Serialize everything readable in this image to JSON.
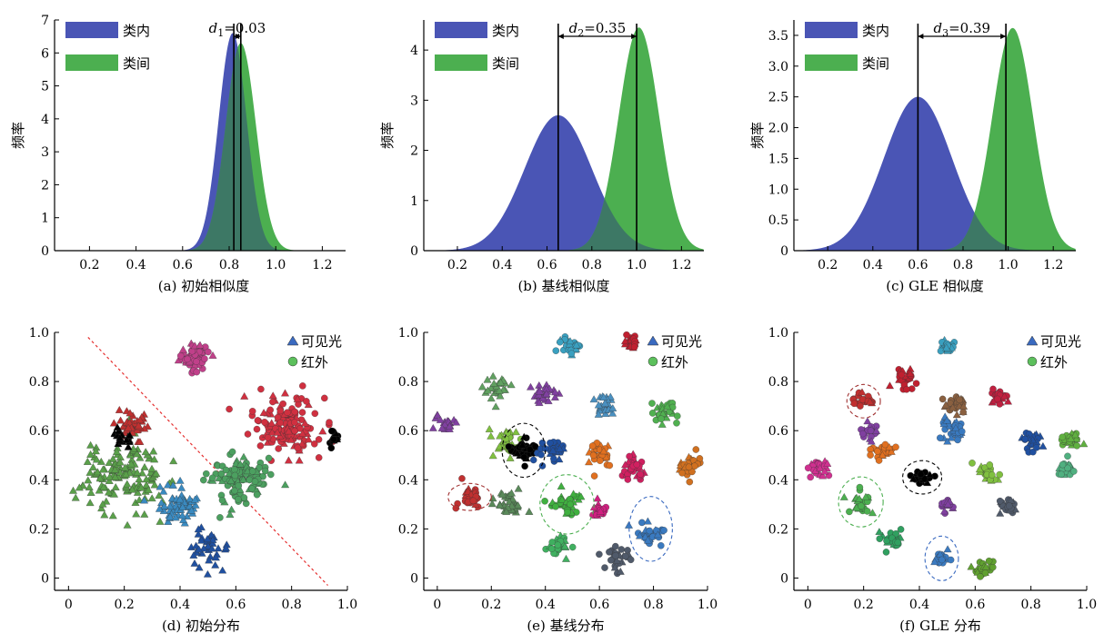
{
  "colors": {
    "intra": "#4a55b5",
    "inter": "#4caf50",
    "overlap": "#3a6a6a",
    "boundary": "#e53030"
  },
  "chart_data": [
    {
      "type": "area",
      "caption": "(a) 初始相似度",
      "ylabel": "频率",
      "legend": [
        "类内",
        "类间"
      ],
      "legend_position": "top-left",
      "xlim": [
        0.05,
        1.3
      ],
      "ylim": [
        0,
        7
      ],
      "xticks": [
        0.2,
        0.4,
        0.6,
        0.8,
        1.0,
        1.2
      ],
      "yticks": [
        0,
        1,
        2,
        3,
        4,
        5,
        6,
        7
      ],
      "series": [
        {
          "name": "类内",
          "mean": 0.815,
          "sd": 0.06,
          "peak": 6.6
        },
        {
          "name": "类间",
          "mean": 0.85,
          "sd": 0.065,
          "peak": 6.3
        }
      ],
      "vlines": [
        0.82,
        0.85
      ],
      "annotation": {
        "sym": "d",
        "sub": "1",
        "val": "=0.03"
      }
    },
    {
      "type": "area",
      "caption": "(b) 基线相似度",
      "ylabel": "频率",
      "legend": [
        "类内",
        "类间"
      ],
      "legend_position": "top-left",
      "xlim": [
        0.05,
        1.3
      ],
      "ylim": [
        0,
        4.6
      ],
      "xticks": [
        0.2,
        0.4,
        0.6,
        0.8,
        1.0,
        1.2
      ],
      "yticks": [
        0,
        1,
        2,
        3,
        4
      ],
      "series": [
        {
          "name": "类内",
          "mean": 0.65,
          "sd": 0.15,
          "peak": 2.7
        },
        {
          "name": "类间",
          "mean": 1.01,
          "sd": 0.09,
          "peak": 4.45
        }
      ],
      "vlines": [
        0.65,
        1.0
      ],
      "annotation": {
        "sym": "d",
        "sub": "2",
        "val": "=0.35"
      }
    },
    {
      "type": "area",
      "caption": "(c) GLE 相似度",
      "ylabel": "频率",
      "legend": [
        "类内",
        "类间"
      ],
      "legend_position": "top-left",
      "xlim": [
        0.05,
        1.3
      ],
      "ylim": [
        0,
        3.75
      ],
      "xticks": [
        0.2,
        0.4,
        0.6,
        0.8,
        1.0,
        1.2
      ],
      "yticks": [
        0,
        0.5,
        1.0,
        1.5,
        2.0,
        2.5,
        3.0,
        3.5
      ],
      "ytick_labels": [
        "0",
        "0.5",
        "1.0",
        "1.5",
        "2.0",
        "2.5",
        "3.0",
        "3.5"
      ],
      "series": [
        {
          "name": "类内",
          "mean": 0.6,
          "sd": 0.15,
          "peak": 2.5
        },
        {
          "name": "类间",
          "mean": 1.02,
          "sd": 0.09,
          "peak": 3.62
        }
      ],
      "vlines": [
        0.6,
        0.99
      ],
      "annotation": {
        "sym": "d",
        "sub": "3",
        "val": "=0.39"
      }
    },
    {
      "type": "scatter",
      "caption": "(d) 初始分布",
      "legend": [
        "可见光",
        "红外"
      ],
      "legend_position": "top-right",
      "xlim": [
        -0.05,
        1.0
      ],
      "ylim": [
        -0.05,
        1.0
      ],
      "ticks": [
        0,
        0.2,
        0.4,
        0.6,
        0.8,
        1.0
      ],
      "tick_labels": [
        "0",
        "0.2",
        "0.4",
        "0.6",
        "0.8",
        "1.0"
      ],
      "boundary_line": [
        [
          0.07,
          0.98
        ],
        [
          0.93,
          -0.03
        ]
      ],
      "clusters": [
        {
          "x": 0.45,
          "y": 0.9,
          "r": 0.06,
          "shape": "circle",
          "color": "#c0408a",
          "n": 60
        },
        {
          "x": 0.78,
          "y": 0.62,
          "r": 0.13,
          "shape": "circle",
          "color": "#d03040",
          "n": 150
        },
        {
          "x": 0.6,
          "y": 0.4,
          "r": 0.12,
          "shape": "circle",
          "color": "#4ca060",
          "n": 110
        },
        {
          "x": 0.95,
          "y": 0.57,
          "r": 0.03,
          "shape": "circle",
          "color": "#000000",
          "n": 14
        },
        {
          "x": 0.2,
          "y": 0.42,
          "r": 0.16,
          "shape": "triangle",
          "color": "#5aa04a",
          "n": 150
        },
        {
          "x": 0.22,
          "y": 0.62,
          "r": 0.07,
          "shape": "triangle",
          "color": "#c03030",
          "n": 45
        },
        {
          "x": 0.4,
          "y": 0.3,
          "r": 0.1,
          "shape": "triangle",
          "color": "#3a8ac0",
          "n": 60
        },
        {
          "x": 0.5,
          "y": 0.12,
          "r": 0.08,
          "shape": "triangle",
          "color": "#2050a0",
          "n": 40
        },
        {
          "x": 0.2,
          "y": 0.58,
          "r": 0.04,
          "shape": "triangle",
          "color": "#000000",
          "n": 18
        }
      ]
    },
    {
      "type": "scatter",
      "caption": "(e) 基线分布",
      "legend": [
        "可见光",
        "红外"
      ],
      "legend_position": "top-right",
      "xlim": [
        -0.05,
        1.0
      ],
      "ylim": [
        -0.05,
        1.0
      ],
      "ticks": [
        0,
        0.2,
        0.4,
        0.6,
        0.8,
        1.0
      ],
      "tick_labels": [
        "0",
        "0.2",
        "0.4",
        "0.6",
        "0.8",
        "1.0"
      ],
      "ellipses": [
        {
          "x": 0.12,
          "y": 0.33,
          "rx": 0.08,
          "ry": 0.05,
          "color": "#a03030"
        },
        {
          "x": 0.32,
          "y": 0.52,
          "rx": 0.08,
          "ry": 0.1,
          "color": "#000000"
        },
        {
          "x": 0.48,
          "y": 0.3,
          "rx": 0.1,
          "ry": 0.11,
          "color": "#4caf50"
        },
        {
          "x": 0.79,
          "y": 0.2,
          "rx": 0.08,
          "ry": 0.12,
          "color": "#3a6ac0"
        }
      ],
      "clusters": [
        {
          "x": 0.49,
          "y": 0.94,
          "r": 0.04,
          "shape": "circle",
          "color": "#3aa0c0",
          "n": 30
        },
        {
          "x": 0.72,
          "y": 0.96,
          "r": 0.03,
          "shape": "circle",
          "color": "#c02030",
          "n": 25
        },
        {
          "x": 0.63,
          "y": 0.7,
          "r": 0.05,
          "shape": "triangle",
          "color": "#4a90c0",
          "n": 28
        },
        {
          "x": 0.84,
          "y": 0.68,
          "r": 0.05,
          "shape": "circle",
          "color": "#50b050",
          "n": 28
        },
        {
          "x": 0.22,
          "y": 0.77,
          "r": 0.05,
          "shape": "triangle",
          "color": "#60a060",
          "n": 28
        },
        {
          "x": 0.4,
          "y": 0.75,
          "r": 0.05,
          "shape": "triangle",
          "color": "#8040a0",
          "n": 28
        },
        {
          "x": 0.03,
          "y": 0.63,
          "r": 0.04,
          "shape": "triangle",
          "color": "#8040a0",
          "n": 22
        },
        {
          "x": 0.25,
          "y": 0.55,
          "r": 0.06,
          "shape": "circle",
          "color": "#80c040",
          "n": 35
        },
        {
          "x": 0.32,
          "y": 0.52,
          "r": 0.06,
          "shape": "circle",
          "color": "#000000",
          "n": 40
        },
        {
          "x": 0.42,
          "y": 0.52,
          "r": 0.05,
          "shape": "circle",
          "color": "#2050a0",
          "n": 30
        },
        {
          "x": 0.6,
          "y": 0.5,
          "r": 0.05,
          "shape": "circle",
          "color": "#e07020",
          "n": 30
        },
        {
          "x": 0.73,
          "y": 0.45,
          "r": 0.05,
          "shape": "circle",
          "color": "#d02060",
          "n": 30
        },
        {
          "x": 0.93,
          "y": 0.45,
          "r": 0.05,
          "shape": "circle",
          "color": "#d07020",
          "n": 30
        },
        {
          "x": 0.12,
          "y": 0.33,
          "r": 0.05,
          "shape": "circle",
          "color": "#c03030",
          "n": 30
        },
        {
          "x": 0.27,
          "y": 0.3,
          "r": 0.06,
          "shape": "triangle",
          "color": "#5a8a5a",
          "n": 35
        },
        {
          "x": 0.47,
          "y": 0.3,
          "r": 0.06,
          "shape": "circle",
          "color": "#40b040",
          "n": 35
        },
        {
          "x": 0.6,
          "y": 0.27,
          "r": 0.04,
          "shape": "circle",
          "color": "#d02080",
          "n": 20
        },
        {
          "x": 0.45,
          "y": 0.13,
          "r": 0.05,
          "shape": "circle",
          "color": "#40b060",
          "n": 28
        },
        {
          "x": 0.67,
          "y": 0.07,
          "r": 0.05,
          "shape": "circle",
          "color": "#505a6a",
          "n": 28
        },
        {
          "x": 0.79,
          "y": 0.18,
          "r": 0.06,
          "shape": "circle",
          "color": "#3a7ac0",
          "n": 35
        }
      ]
    },
    {
      "type": "scatter",
      "caption": "(f) GLE 分布",
      "legend": [
        "可见光",
        "红外"
      ],
      "legend_position": "top-right",
      "xlim": [
        -0.05,
        1.0
      ],
      "ylim": [
        -0.05,
        1.0
      ],
      "ticks": [
        0,
        0.2,
        0.4,
        0.6,
        0.8,
        1.0
      ],
      "tick_labels": [
        "0",
        "0.2",
        "0.4",
        "0.6",
        "0.8",
        "1.0"
      ],
      "ellipses": [
        {
          "x": 0.2,
          "y": 0.72,
          "rx": 0.06,
          "ry": 0.06,
          "color": "#a03030"
        },
        {
          "x": 0.41,
          "y": 0.41,
          "rx": 0.07,
          "ry": 0.06,
          "color": "#000000"
        },
        {
          "x": 0.19,
          "y": 0.31,
          "rx": 0.08,
          "ry": 0.09,
          "color": "#4caf50"
        },
        {
          "x": 0.48,
          "y": 0.08,
          "rx": 0.06,
          "ry": 0.08,
          "color": "#3a6ac0"
        }
      ],
      "clusters": [
        {
          "x": 0.5,
          "y": 0.94,
          "r": 0.03,
          "shape": "circle",
          "color": "#3aa0c0",
          "n": 25
        },
        {
          "x": 0.34,
          "y": 0.81,
          "r": 0.04,
          "shape": "circle",
          "color": "#c02030",
          "n": 25
        },
        {
          "x": 0.68,
          "y": 0.74,
          "r": 0.04,
          "shape": "circle",
          "color": "#c02040",
          "n": 25
        },
        {
          "x": 0.2,
          "y": 0.72,
          "r": 0.04,
          "shape": "circle",
          "color": "#c03030",
          "n": 25
        },
        {
          "x": 0.53,
          "y": 0.7,
          "r": 0.04,
          "shape": "circle",
          "color": "#8a6040",
          "n": 25
        },
        {
          "x": 0.23,
          "y": 0.6,
          "r": 0.04,
          "shape": "circle",
          "color": "#8040a0",
          "n": 25
        },
        {
          "x": 0.52,
          "y": 0.6,
          "r": 0.05,
          "shape": "circle",
          "color": "#3a7ac0",
          "n": 30
        },
        {
          "x": 0.8,
          "y": 0.56,
          "r": 0.04,
          "shape": "circle",
          "color": "#2050a0",
          "n": 25
        },
        {
          "x": 0.94,
          "y": 0.57,
          "r": 0.04,
          "shape": "circle",
          "color": "#60b040",
          "n": 25
        },
        {
          "x": 0.27,
          "y": 0.52,
          "r": 0.04,
          "shape": "circle",
          "color": "#e07020",
          "n": 25
        },
        {
          "x": 0.04,
          "y": 0.45,
          "r": 0.04,
          "shape": "circle",
          "color": "#d03090",
          "n": 25
        },
        {
          "x": 0.65,
          "y": 0.43,
          "r": 0.04,
          "shape": "circle",
          "color": "#80c040",
          "n": 25
        },
        {
          "x": 0.93,
          "y": 0.45,
          "r": 0.04,
          "shape": "circle",
          "color": "#50b080",
          "n": 25
        },
        {
          "x": 0.41,
          "y": 0.41,
          "r": 0.04,
          "shape": "circle",
          "color": "#000000",
          "n": 25
        },
        {
          "x": 0.5,
          "y": 0.3,
          "r": 0.03,
          "shape": "circle",
          "color": "#8040a0",
          "n": 20
        },
        {
          "x": 0.72,
          "y": 0.29,
          "r": 0.04,
          "shape": "circle",
          "color": "#505a6a",
          "n": 25
        },
        {
          "x": 0.19,
          "y": 0.31,
          "r": 0.05,
          "shape": "circle",
          "color": "#4caf50",
          "n": 25
        },
        {
          "x": 0.3,
          "y": 0.16,
          "r": 0.04,
          "shape": "circle",
          "color": "#30a060",
          "n": 25
        },
        {
          "x": 0.48,
          "y": 0.08,
          "r": 0.03,
          "shape": "circle",
          "color": "#3a7ac0",
          "n": 20
        },
        {
          "x": 0.63,
          "y": 0.04,
          "r": 0.04,
          "shape": "circle",
          "color": "#60a030",
          "n": 25
        }
      ]
    }
  ]
}
